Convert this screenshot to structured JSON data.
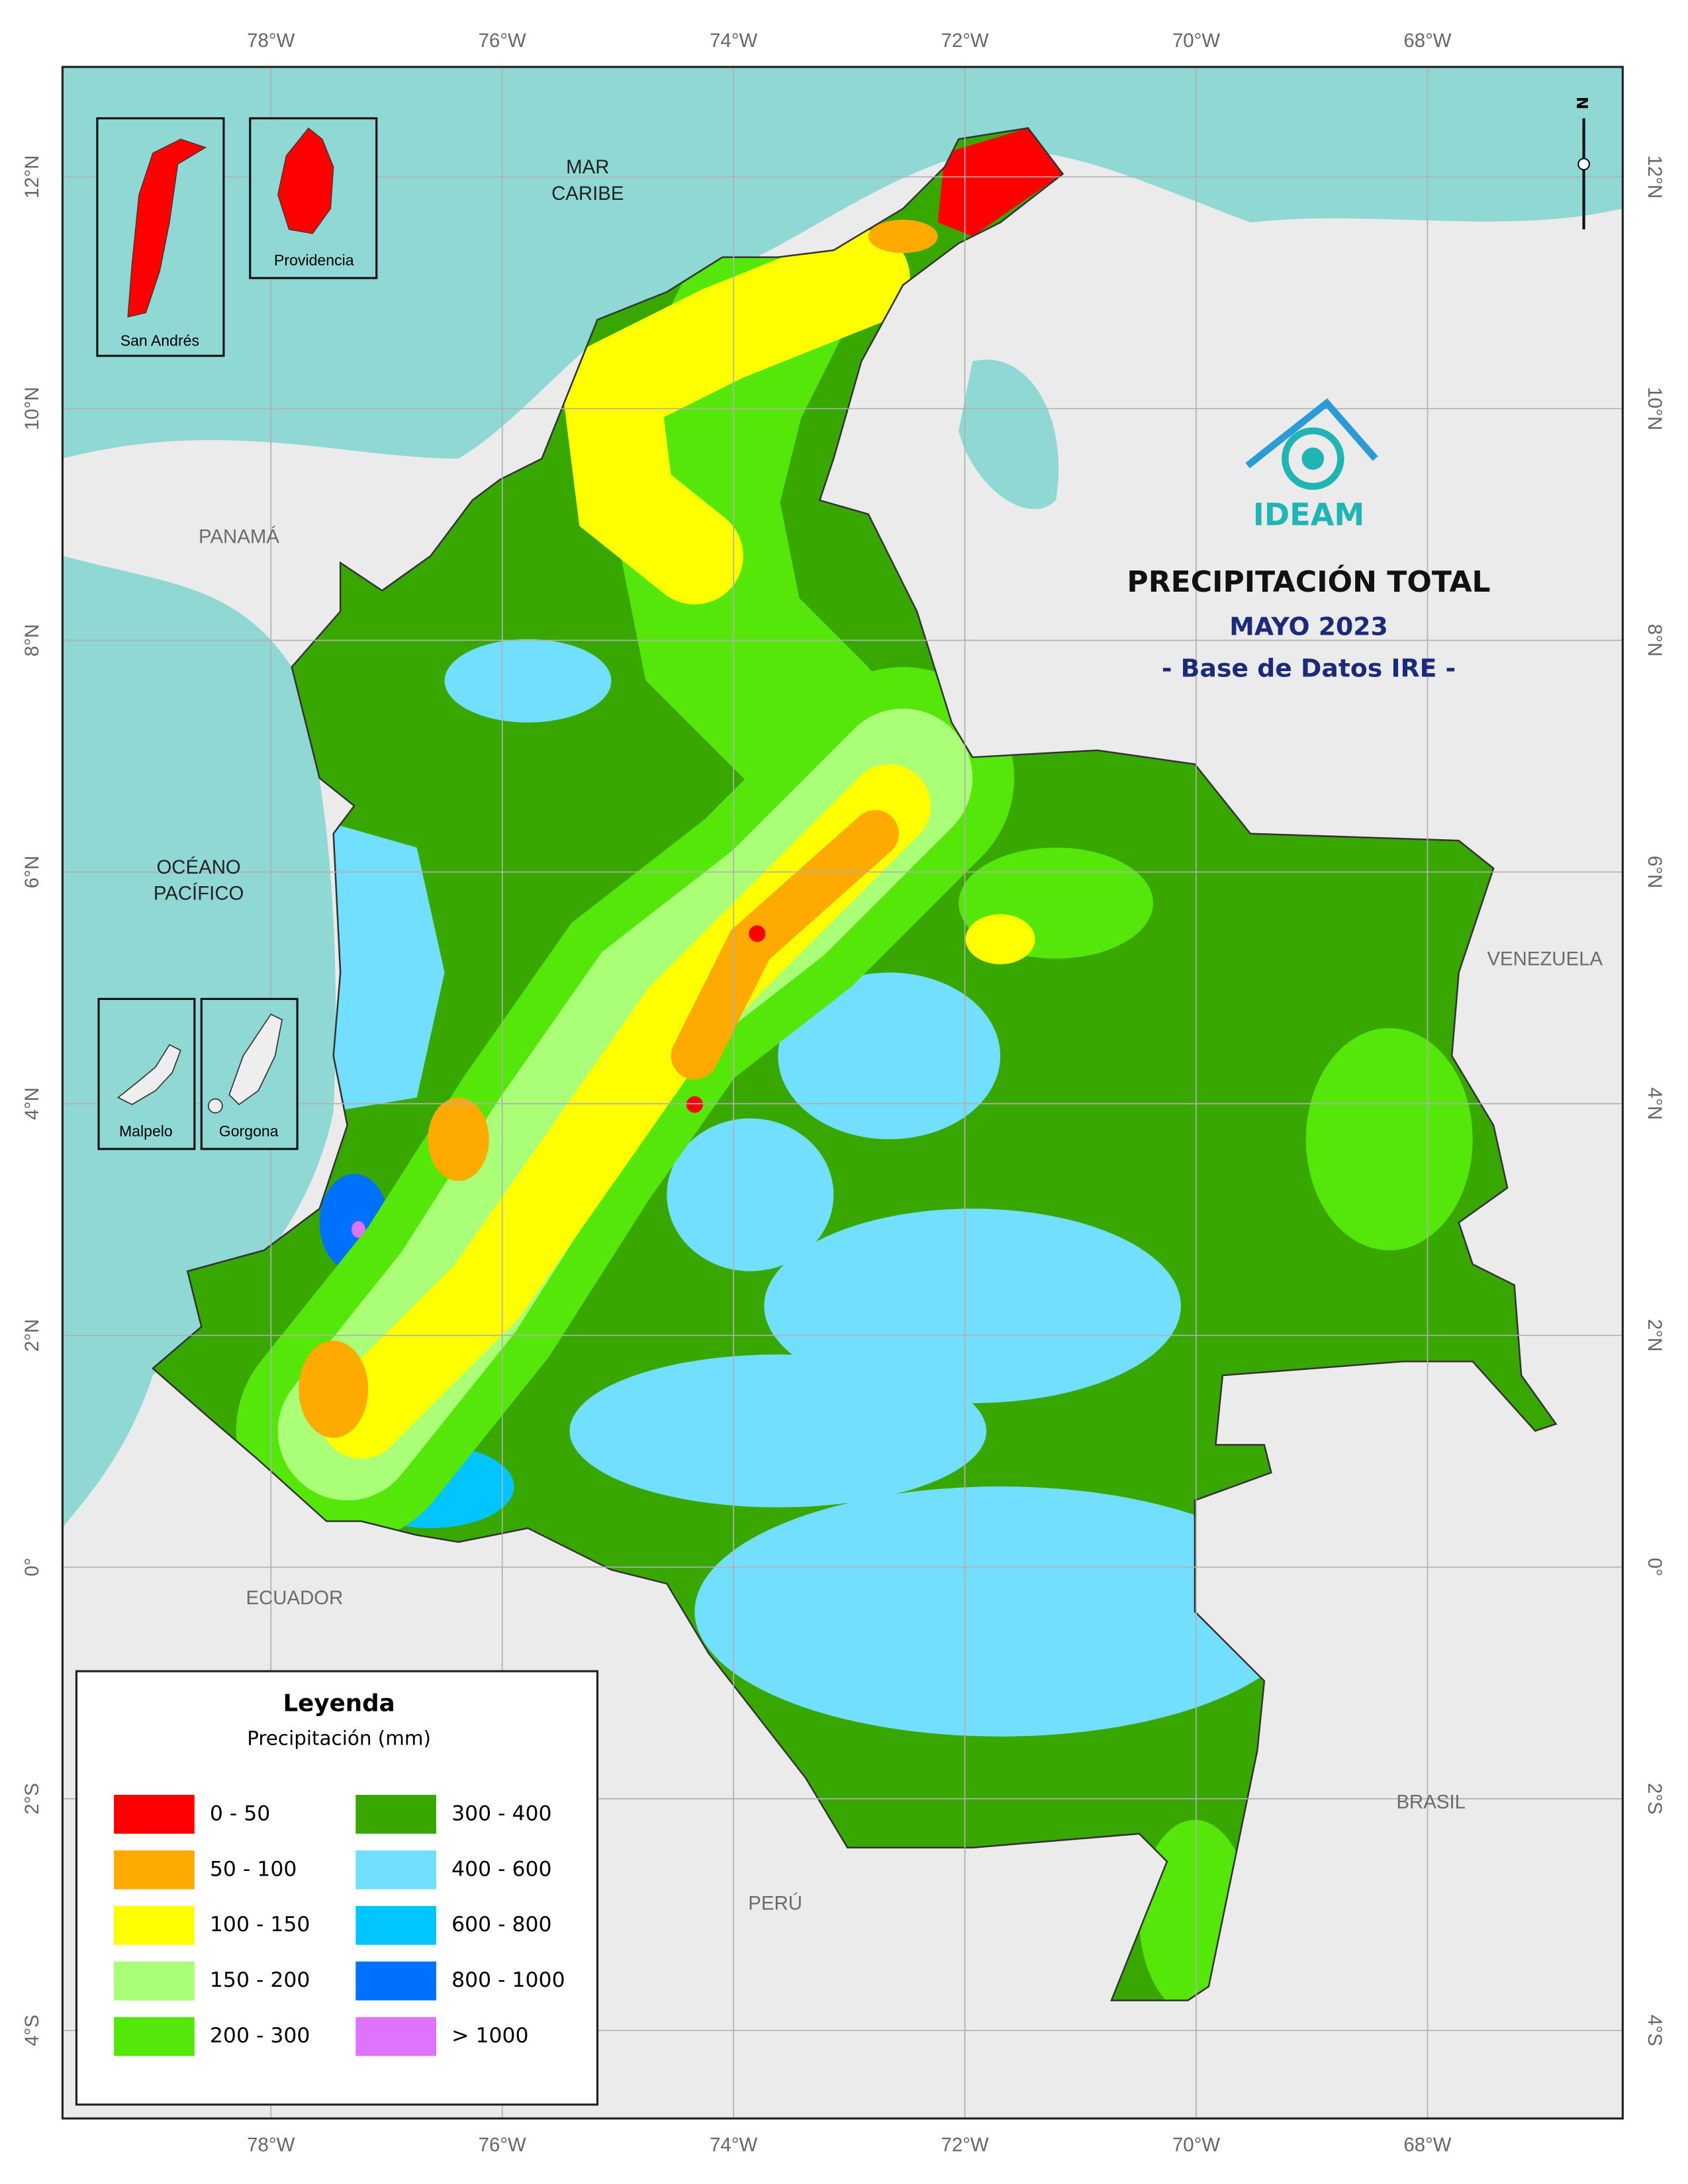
{
  "header": {
    "title": "PRECIPITACIÓN TOTAL",
    "subtitle": "MAYO 2023",
    "source": "- Base de Datos IRE -",
    "logo": "IDEAM"
  },
  "graticule": {
    "lon": [
      {
        "value": -78,
        "label": "78°W"
      },
      {
        "value": -76,
        "label": "76°W"
      },
      {
        "value": -74,
        "label": "74°W"
      },
      {
        "value": -72,
        "label": "72°W"
      },
      {
        "value": -70,
        "label": "70°W"
      },
      {
        "value": -68,
        "label": "68°W"
      }
    ],
    "lat": [
      {
        "value": 12,
        "label": "12°N"
      },
      {
        "value": 10,
        "label": "10°N"
      },
      {
        "value": 8,
        "label": "8°N"
      },
      {
        "value": 6,
        "label": "6°N"
      },
      {
        "value": 4,
        "label": "4°N"
      },
      {
        "value": 2,
        "label": "2°N"
      },
      {
        "value": 0,
        "label": "0°"
      },
      {
        "value": -2,
        "label": "2°S"
      },
      {
        "value": -4,
        "label": "4°S"
      }
    ]
  },
  "places": {
    "caribbean": [
      "MAR",
      "CARIBE"
    ],
    "panama": "PANAMÁ",
    "pacific": [
      "OCÉANO",
      "PACÍFICO"
    ],
    "venezuela": "VENEZUELA",
    "ecuador": "ECUADOR",
    "peru": "PERÚ",
    "brazil": "BRASIL"
  },
  "insets": [
    "San Andrés",
    "Providencia",
    "Malpelo",
    "Gorgona"
  ],
  "north": "N",
  "legend": {
    "title": "Leyenda",
    "subtitle": "Precipitación (mm)",
    "items": [
      {
        "label": "0 - 50",
        "color": "#ff0000"
      },
      {
        "label": "50 - 100",
        "color": "#ffaa00"
      },
      {
        "label": "100 - 150",
        "color": "#ffff00"
      },
      {
        "label": "150 - 200",
        "color": "#aaff77"
      },
      {
        "label": "200 - 300",
        "color": "#55e60a"
      },
      {
        "label": "300 - 400",
        "color": "#38a800"
      },
      {
        "label": "400 - 600",
        "color": "#73dfff"
      },
      {
        "label": "600 - 800",
        "color": "#00c5ff"
      },
      {
        "label": "800 - 1000",
        "color": "#0070ff"
      },
      {
        "label": "> 1000",
        "color": "#df73ff"
      }
    ]
  }
}
